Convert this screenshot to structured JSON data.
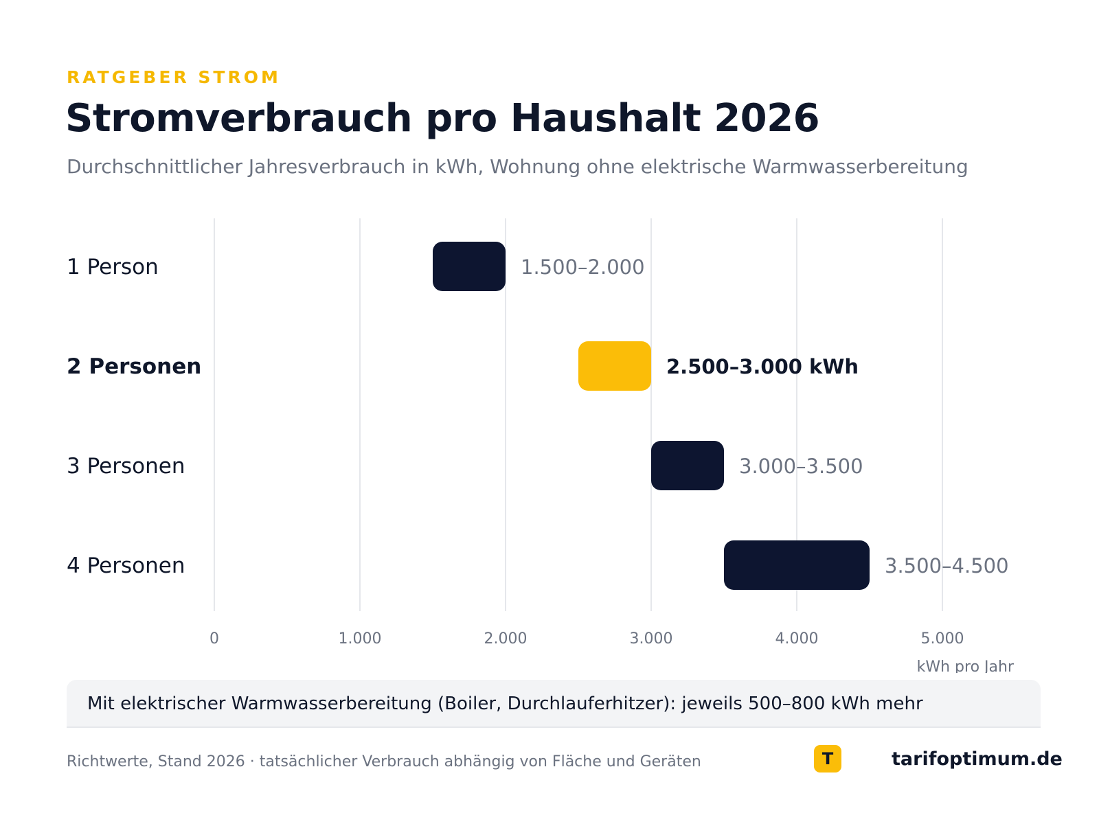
{
  "header": {
    "kicker": "RATGEBER STROM",
    "title": "Stromverbrauch pro Haushalt 2026",
    "subtitle": "Durchschnittlicher Jahresverbrauch in kWh, Wohnung ohne elektrische Warmwasserbereitung"
  },
  "chart_data": {
    "type": "bar",
    "orientation": "horizontal-range",
    "xlabel": "kWh pro Jahr",
    "xlim": [
      0,
      5000
    ],
    "xticks": [
      0,
      1000,
      2000,
      3000,
      4000,
      5000
    ],
    "xtick_labels": [
      "0",
      "1.000",
      "2.000",
      "3.000",
      "4.000",
      "5.000"
    ],
    "grid": true,
    "categories": [
      {
        "label": "1 Person",
        "min": 1500,
        "max": 2000,
        "value_label": "1.500–2.000",
        "highlight": false,
        "color": "#0d1530"
      },
      {
        "label": "2 Personen",
        "min": 2500,
        "max": 3000,
        "value_label": "2.500–3.000 kWh",
        "highlight": true,
        "color": "#fbbd08"
      },
      {
        "label": "3 Personen",
        "min": 3000,
        "max": 3500,
        "value_label": "3.000–3.500",
        "highlight": false,
        "color": "#0d1530"
      },
      {
        "label": "4 Personen",
        "min": 3500,
        "max": 4500,
        "value_label": "3.500–4.500",
        "highlight": false,
        "color": "#0d1530"
      }
    ]
  },
  "note": "Mit elektrischer Warmwasserbereitung (Boiler, Durchlauferhitzer): jeweils 500–800 kWh mehr",
  "footer": {
    "source": "Richtwerte, Stand 2026 · tatsächlicher Verbrauch abhängig von Fläche und Geräten",
    "logo_letter": "T",
    "brand": "tarifoptimum.de"
  },
  "colors": {
    "accent": "#fbbd08",
    "bar_dark": "#0d1530",
    "grid": "#e5e7eb",
    "muted": "#6b7280"
  }
}
